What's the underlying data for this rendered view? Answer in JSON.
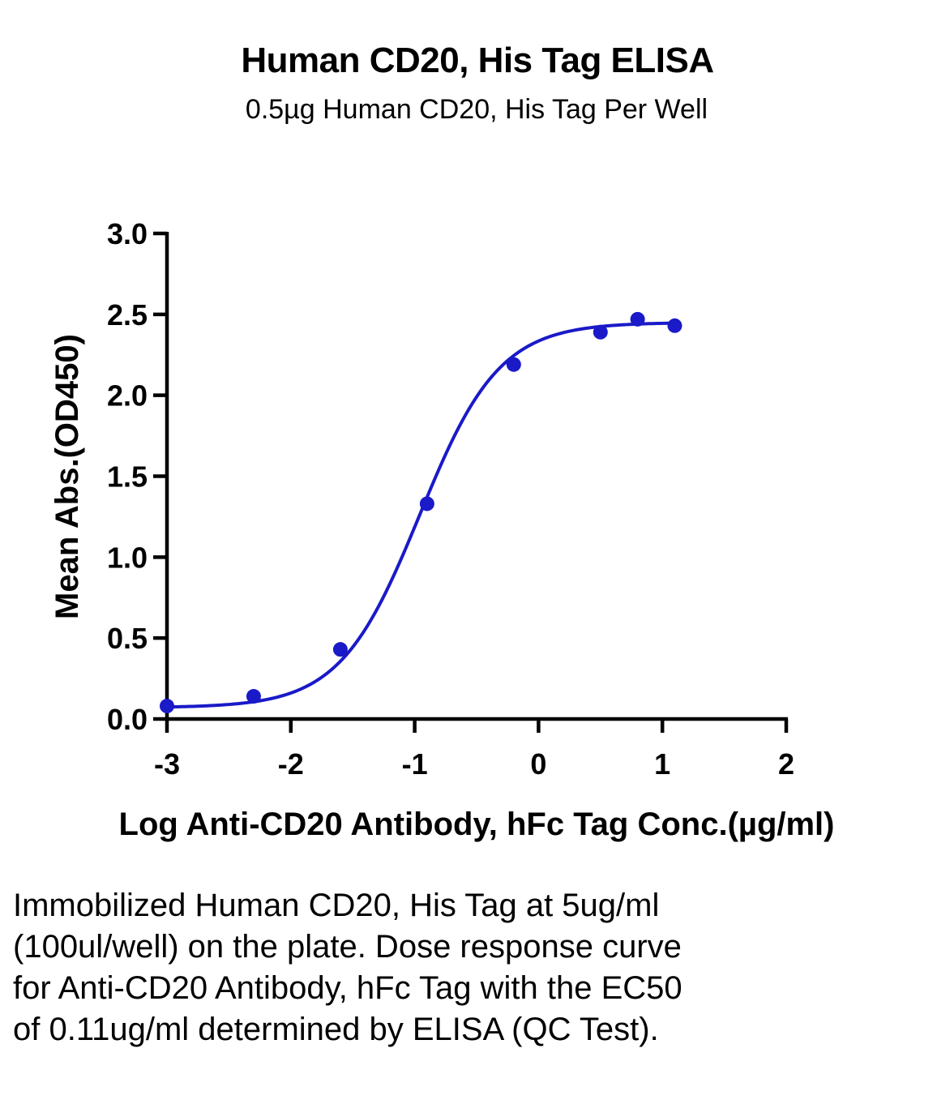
{
  "chart_data": {
    "type": "scatter",
    "title": "Human CD20, His Tag ELISA",
    "subtitle": "0.5µg Human CD20, His Tag Per Well",
    "xlabel": "Log Anti-CD20 Antibody, hFc Tag Conc.(µg/ml)",
    "ylabel": "Mean Abs.(OD450)",
    "xlim": [
      -3,
      2
    ],
    "ylim": [
      0,
      3
    ],
    "x_ticks": [
      -3,
      -2,
      -1,
      0,
      1,
      2
    ],
    "x_tick_labels": [
      "-3",
      "-2",
      "-1",
      "0",
      "1",
      "2"
    ],
    "y_ticks": [
      0,
      0.5,
      1,
      1.5,
      2,
      2.5,
      3
    ],
    "y_tick_labels": [
      "0.0",
      "0.5",
      "1.0",
      "1.5",
      "2.0",
      "2.5",
      "3.0"
    ],
    "grid": false,
    "legend": "none",
    "series": [
      {
        "color": "#1a1ac8",
        "points": [
          {
            "x": -3.0,
            "y": 0.08
          },
          {
            "x": -2.3,
            "y": 0.14
          },
          {
            "x": -1.6,
            "y": 0.43
          },
          {
            "x": -0.9,
            "y": 1.33
          },
          {
            "x": -0.2,
            "y": 2.19
          },
          {
            "x": 0.5,
            "y": 2.39
          },
          {
            "x": 0.8,
            "y": 2.47
          },
          {
            "x": 1.1,
            "y": 2.43
          }
        ],
        "fit": {
          "model": "4PL",
          "bottom": 0.07,
          "top": 2.45,
          "log_ec50": -0.96,
          "hill_slope": 1.35,
          "x_range": [
            -3.0,
            1.1
          ]
        }
      }
    ]
  },
  "caption": "Immobilized Human CD20, His Tag at 5ug/ml (100ul/well) on the plate. Dose response curve for Anti-CD20 Antibody, hFc Tag with the EC50 of 0.11ug/ml determined by ELISA (QC Test)."
}
